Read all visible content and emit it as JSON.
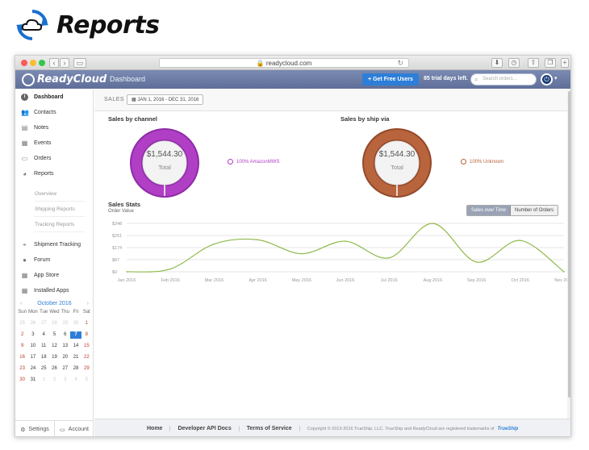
{
  "page": {
    "title": "Reports"
  },
  "browser": {
    "url": "readycloud.com"
  },
  "app": {
    "brand": "ReadyCloud",
    "breadcrumb": "Dashboard",
    "free_users_label": "+ Get Free Users",
    "trial_text": "85 trial days left.",
    "search_placeholder": "Search orders..."
  },
  "sidebar": {
    "items": [
      {
        "label": "Dashboard",
        "icon": "dashboard-icon",
        "active": true
      },
      {
        "label": "Contacts",
        "icon": "contacts-icon"
      },
      {
        "label": "Notes",
        "icon": "notes-icon"
      },
      {
        "label": "Events",
        "icon": "events-icon"
      },
      {
        "label": "Orders",
        "icon": "orders-icon"
      },
      {
        "label": "Reports",
        "icon": "reports-icon"
      }
    ],
    "report_subitems": [
      "Overview",
      "Shipping Reports",
      "Tracking Reports"
    ],
    "items2": [
      {
        "label": "Shipment Tracking",
        "icon": "tracking-icon"
      },
      {
        "label": "Forum",
        "icon": "forum-icon"
      },
      {
        "label": "App Store",
        "icon": "app-store-icon"
      },
      {
        "label": "Installed Apps",
        "icon": "installed-apps-icon"
      }
    ],
    "settings_label": "Settings",
    "account_label": "Account"
  },
  "calendar": {
    "month_label": "October 2016",
    "weekdays": [
      "Sun",
      "Mon",
      "Tue",
      "Wed",
      "Thu",
      "Fri",
      "Sat"
    ],
    "leading_days": [
      "25",
      "26",
      "27",
      "28",
      "29",
      "30"
    ],
    "days_in_month": 31,
    "trailing_days": [
      "1",
      "2",
      "3",
      "4",
      "5"
    ],
    "today": 7
  },
  "main": {
    "sales_label": "SALES",
    "date_range": "JAN 1, 2016 - DEC 31, 2016",
    "by_channel": {
      "title": "Sales by channel",
      "value": "$1,544.30",
      "sub": "Total",
      "legend": "100% AmazonMWS",
      "color": "#b03fc6",
      "color_dark": "#8e2ba6"
    },
    "by_ship_via": {
      "title": "Sales by ship via",
      "value": "$1,544.30",
      "sub": "Total",
      "legend": "100% Unknown",
      "color": "#b8643c",
      "color_dark": "#94482a"
    },
    "stats_title": "Sales Stats",
    "stats_sub": "Order Value",
    "toggle": [
      "Sales over Time",
      "Number of Orders"
    ]
  },
  "chart_data": {
    "type": "line",
    "title": "Sales Stats",
    "ylabel": "Order Value",
    "xlabel": "",
    "y_ticks": [
      "$0",
      "$87",
      "$174",
      "$261",
      "$348"
    ],
    "ylim": [
      0,
      348
    ],
    "categories": [
      "Jan 2016",
      "Feb 2016",
      "Mar 2016",
      "Apr 2016",
      "May 2016",
      "Jun 2016",
      "Jul 2016",
      "Aug 2016",
      "Sep 2016",
      "Oct 2016",
      "Nov 2016"
    ],
    "series": [
      {
        "values": [
          0,
          20,
          200,
          230,
          130,
          220,
          100,
          348,
          70,
          225,
          0
        ],
        "color": "#8fba4a"
      }
    ],
    "grid": true
  },
  "footer": {
    "links": [
      "Home",
      "Developer API Docs",
      "Terms of Service"
    ],
    "copyright": "Copyright © 2013-2016 TrueShip, LLC. TrueShip and ReadyCloud are registered trademarks of",
    "trueship": "TrueShip"
  }
}
